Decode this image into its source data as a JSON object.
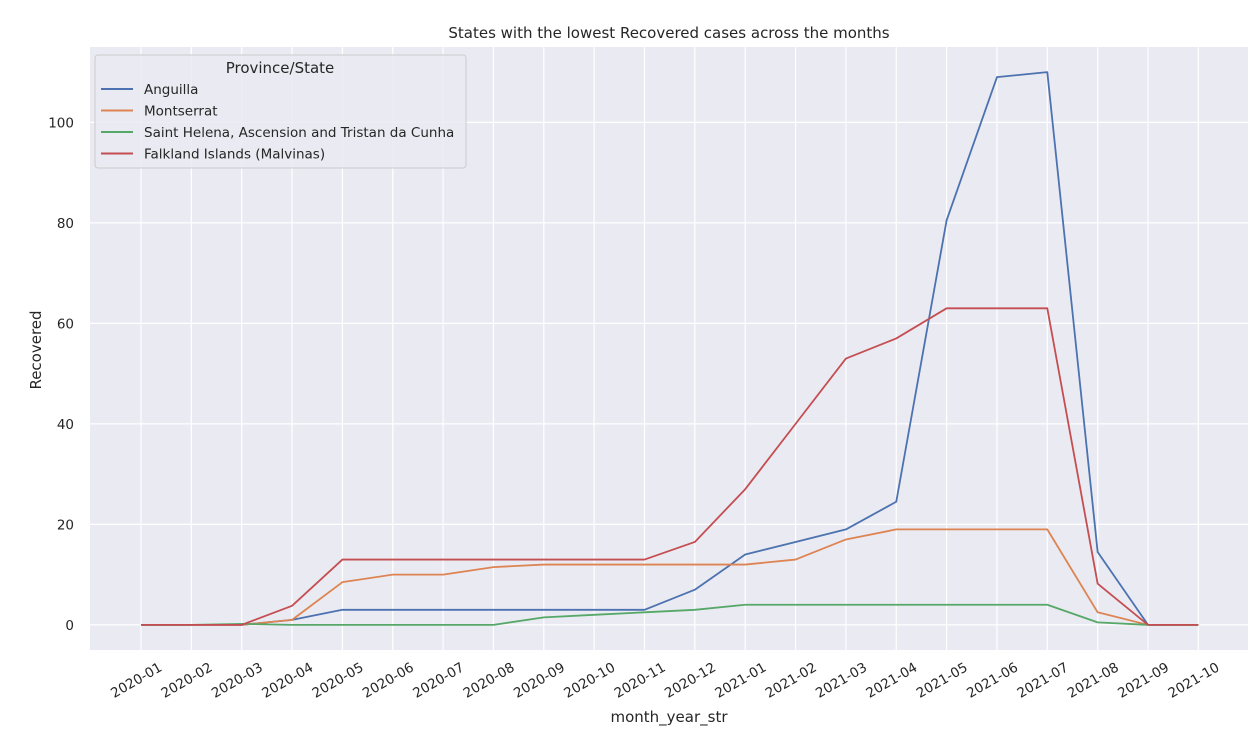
{
  "chart_data": {
    "type": "line",
    "title": "States with the lowest Recovered cases across the months",
    "xlabel": "month_year_str",
    "ylabel": "Recovered",
    "ylim": [
      -5,
      115
    ],
    "yticks": [
      0,
      20,
      40,
      60,
      80,
      100
    ],
    "grid": true,
    "legend": {
      "title": "Province/State",
      "placement": "top-left"
    },
    "categories": [
      "2020-01",
      "2020-02",
      "2020-03",
      "2020-04",
      "2020-05",
      "2020-06",
      "2020-07",
      "2020-08",
      "2020-09",
      "2020-10",
      "2020-11",
      "2020-12",
      "2021-01",
      "2021-02",
      "2021-03",
      "2021-04",
      "2021-05",
      "2021-06",
      "2021-07",
      "2021-08",
      "2021-09",
      "2021-10"
    ],
    "series": [
      {
        "name": "Anguilla",
        "color": "#4c72b0",
        "values": [
          0,
          0,
          0,
          1,
          3,
          3,
          3,
          3,
          3,
          3,
          3,
          7,
          14,
          16.5,
          19,
          24.5,
          80.5,
          109,
          110,
          14.5,
          0,
          0
        ]
      },
      {
        "name": "Montserrat",
        "color": "#dd8452",
        "values": [
          0,
          0,
          0,
          1,
          8.5,
          10,
          10,
          11.5,
          12,
          12,
          12,
          12,
          12,
          13,
          17,
          19,
          19,
          19,
          19,
          2.5,
          0,
          0
        ]
      },
      {
        "name": "Saint Helena, Ascension and Tristan da Cunha",
        "color": "#55a868",
        "values": [
          0,
          0,
          0.2,
          0,
          0,
          0,
          0,
          0,
          1.5,
          2,
          2.5,
          3,
          4,
          4,
          4,
          4,
          4,
          4,
          4,
          0.5,
          0,
          0
        ]
      },
      {
        "name": "Falkland Islands (Malvinas)",
        "color": "#c44e52",
        "values": [
          0,
          0,
          0,
          3.8,
          13,
          13,
          13,
          13,
          13,
          13,
          13,
          16.5,
          27,
          40,
          53,
          57,
          63,
          63,
          63,
          8.2,
          0,
          0
        ]
      }
    ]
  }
}
